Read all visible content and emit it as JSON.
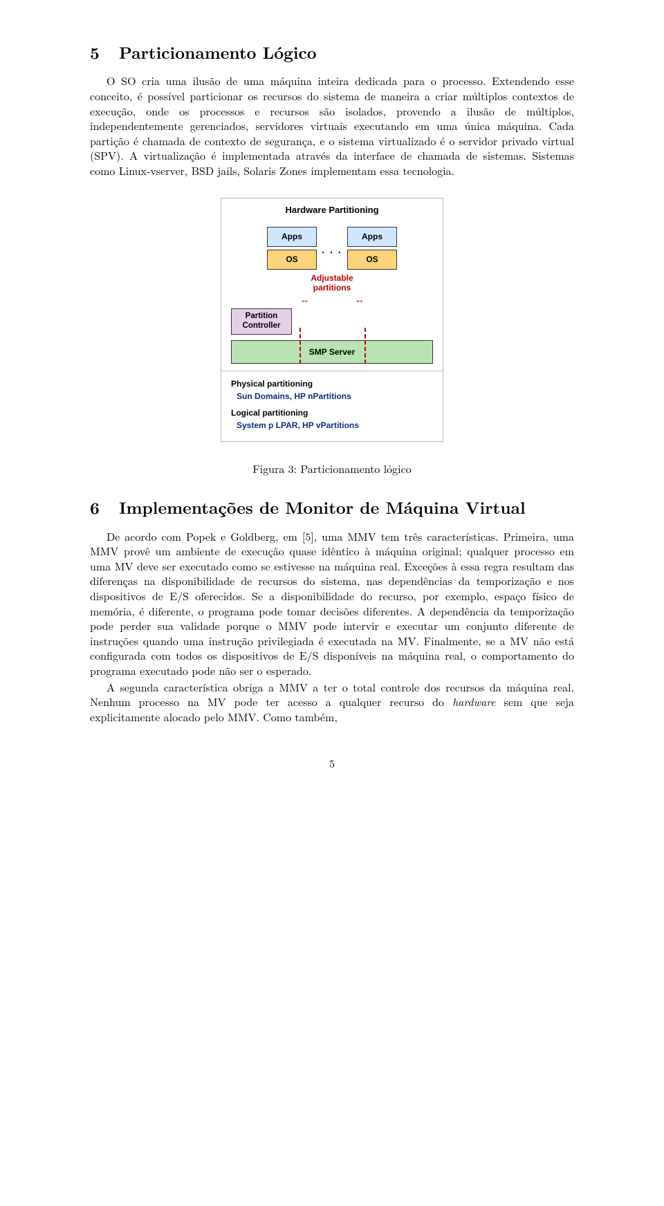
{
  "section5": {
    "number": "5",
    "title": "Particionamento Lógico",
    "para1": "O SO cria uma ilusão de uma máquina inteira dedicada para o processo. Extendendo esse conceito, é possível particionar os recursos do sistema de maneira a criar múltiplos contextos de execução, onde os processos e recursos são isolados, provendo a ilusão de múltiplos, independentemente gerenciados, servidores virtuais executando em uma única máquina. Cada partição é chamada de contexto de segurança, e o sistema virtualizado é o servidor privado virtual (SPV). A virtualização é implementada através da interface de chamada de sistemas. Sistemas como Linux-vserver, BSD jails, Solaris Zones implementam essa tecnologia."
  },
  "figure3": {
    "title": "Hardware Partitioning",
    "apps": "Apps",
    "os": "OS",
    "dots": ". . .",
    "adjustable_line1": "Adjustable",
    "adjustable_line2": "partitions",
    "arrow_glyphs": "↔",
    "partition_controller_line1": "Partition",
    "partition_controller_line2": "Controller",
    "smp": "SMP Server",
    "physical_head": "Physical partitioning",
    "physical_sub": "Sun Domains, HP nPartitions",
    "logical_head": "Logical partitioning",
    "logical_sub": "System p LPAR, HP vPartitions",
    "caption": "Figura 3: Particionamento lógico",
    "colors": {
      "apps_bg": "#cfe6ff",
      "os_bg": "#ffd37a",
      "pc_bg": "#e5cfe8",
      "smp_bg": "#b9e3b3",
      "accent_red": "#b90000",
      "foot_blue": "#0a2f7a",
      "border_gray": "#b6b6b6"
    }
  },
  "section6": {
    "number": "6",
    "title": "Implementações de Monitor de Máquina Virtual",
    "para1": "De acordo com Popek e Goldberg, em [5], uma MMV tem três características. Primeira, uma MMV provê um ambiente de execução quase idêntico à máquina original; qualquer processo em uma MV deve ser executado como se estivesse na máquina real. Exceções à essa regra resultam das diferenças na disponibilidade de recursos do sistema, nas dependências da temporização e nos dispositivos de E/S oferecidos. Se a disponibilidade do recurso, por exemplo, espaço físico de memória, é diferente, o programa pode tomar decisões diferentes. A dependência da temporização pode perder sua validade porque o MMV pode intervir e executar um conjunto diferente de instruções quando uma instrução privilegiada é executada na MV. Finalmente, se a MV não está configurada com todos os dispositivos de E/S disponíveis na máquina real, o comportamento do programa executado pode não ser o esperado.",
    "para2": "A segunda característica obriga a MMV a ter o total controle dos recursos da máquina real. Nenhum processo na MV pode ter acesso a qualquer recurso do ",
    "para2_em": "hardware",
    "para2_tail": " sem que seja explicitamente alocado pelo MMV. Como também,"
  },
  "page_number": "5"
}
